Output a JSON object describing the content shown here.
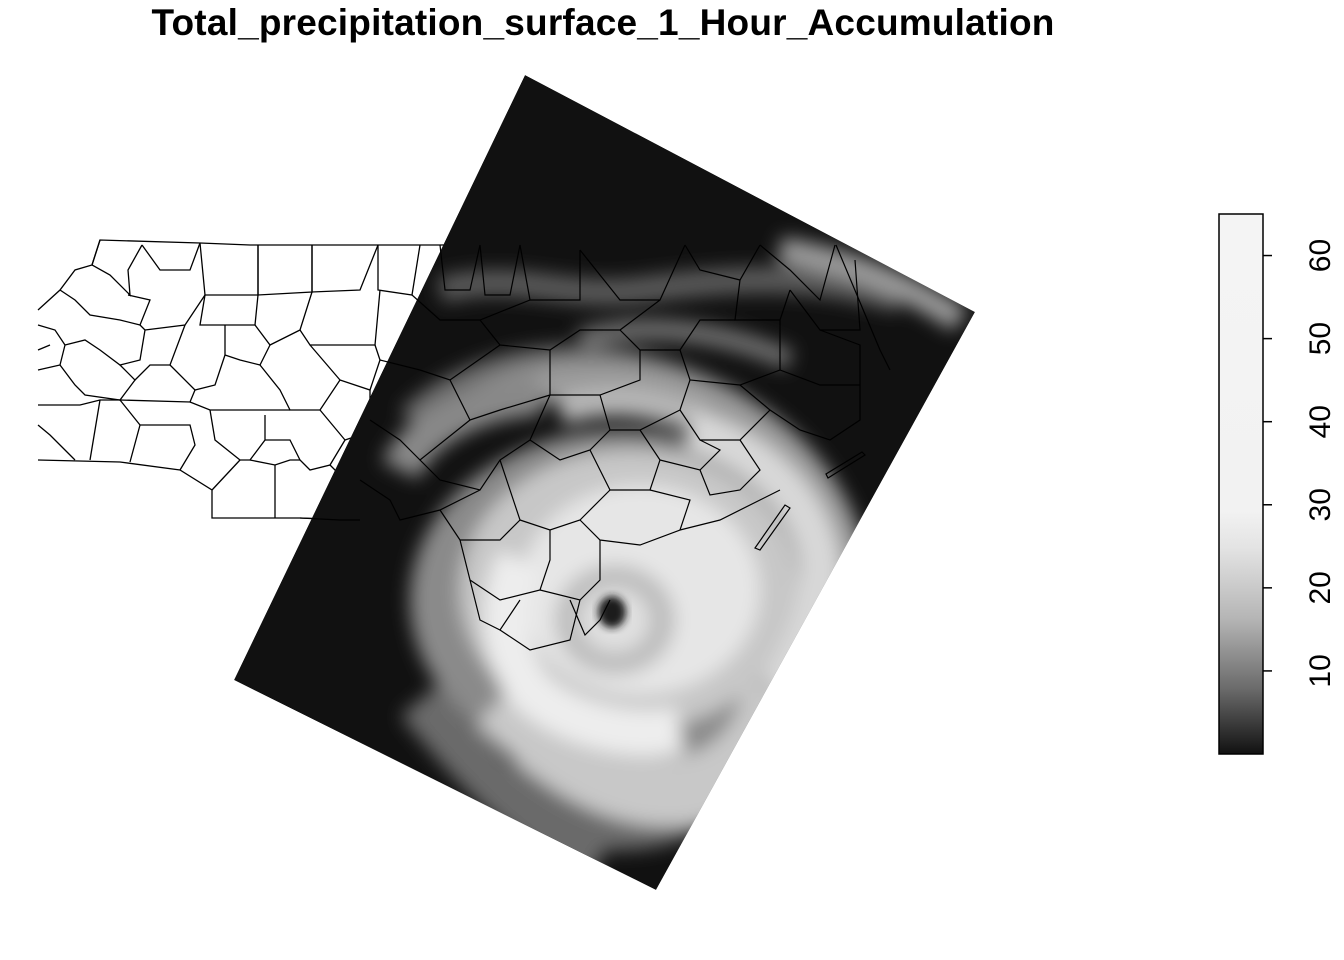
{
  "title": "Total_precipitation_surface_1_Hour_Accumulation",
  "legend": {
    "ticks": [
      "10",
      "20",
      "30",
      "40",
      "50",
      "60"
    ],
    "tick_values": [
      10,
      20,
      30,
      40,
      50,
      60
    ],
    "min": 0,
    "max": 65,
    "gradient_low_color": "#111111",
    "gradient_high_color": "#f2f2f2"
  },
  "colors": {
    "background": "#ffffff",
    "raster_dark": "#111111",
    "county_line": "#000000"
  }
}
